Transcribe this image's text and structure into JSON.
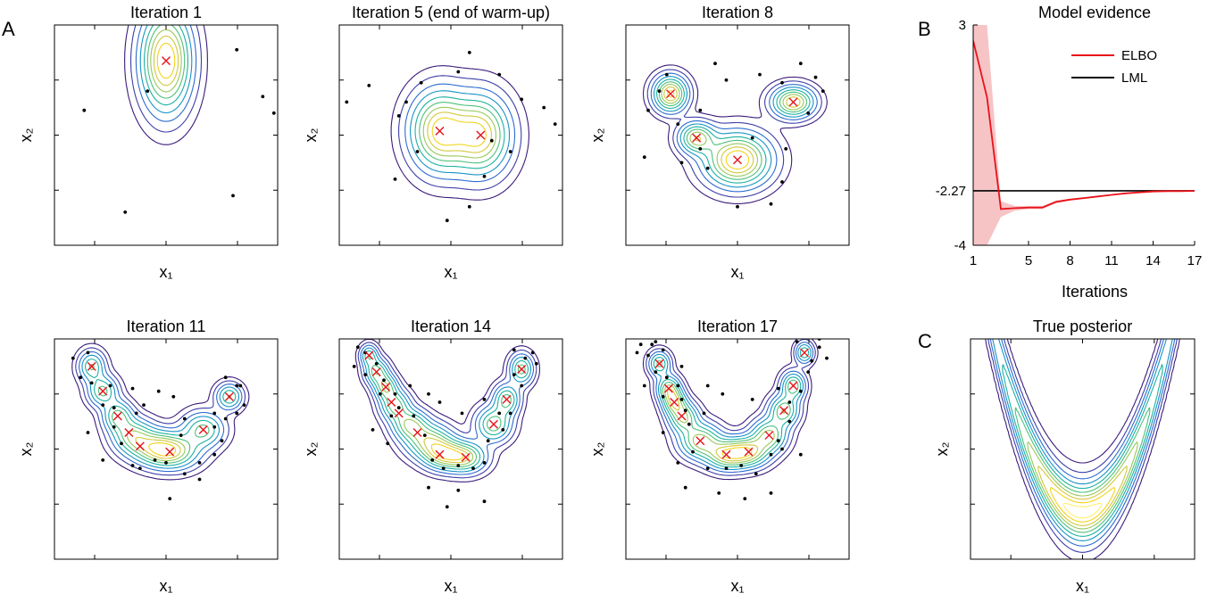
{
  "panel_labels": [
    "A",
    "B",
    "C"
  ],
  "chart_data": [
    {
      "type": "scatter",
      "title": "Iteration 1",
      "xlabel": "x₁",
      "ylabel": "x₂",
      "centers": [
        [
          0.0,
          2.7
        ]
      ],
      "comps": [
        {
          "x": 0.0,
          "y": 2.7,
          "sx": 0.42,
          "sy": 1.15,
          "r": 0,
          "w": 1
        }
      ],
      "points": [
        [
          -3.1,
          1.1
        ],
        [
          -2.2,
          0.9
        ],
        [
          -1.1,
          -2.8
        ],
        [
          1.0,
          -4.3
        ],
        [
          1.8,
          -2.2
        ],
        [
          1.9,
          3.1
        ],
        [
          2.6,
          1.4
        ],
        [
          2.9,
          0.8
        ],
        [
          -0.5,
          1.6
        ]
      ]
    },
    {
      "type": "scatter",
      "title": "Iteration 5 (end of warm-up)",
      "xlabel": "x₁",
      "ylabel": "x₂",
      "centers": [
        [
          -0.3,
          0.15
        ],
        [
          0.8,
          0.0
        ]
      ],
      "comps": [
        {
          "x": -0.3,
          "y": 0.15,
          "sx": 0.5,
          "sy": 0.9,
          "r": 0,
          "w": 1
        },
        {
          "x": 0.8,
          "y": 0.0,
          "sx": 0.5,
          "sy": 0.9,
          "r": 0,
          "w": 0.95
        }
      ],
      "points": [
        [
          -2.2,
          1.8
        ],
        [
          -1.2,
          1.2
        ],
        [
          -0.8,
          1.9
        ],
        [
          -1.4,
          0.7
        ],
        [
          0.2,
          2.3
        ],
        [
          0.5,
          3.0
        ],
        [
          1.3,
          2.2
        ],
        [
          1.9,
          1.3
        ],
        [
          2.5,
          1.0
        ],
        [
          2.8,
          0.4
        ],
        [
          1.6,
          -0.6
        ],
        [
          0.9,
          -1.5
        ],
        [
          0.5,
          -2.6
        ],
        [
          -0.1,
          -3.1
        ],
        [
          -1.5,
          -1.6
        ],
        [
          -0.9,
          -0.6
        ],
        [
          -2.8,
          1.2
        ],
        [
          -3.2,
          1.3
        ],
        [
          1.1,
          -0.2
        ]
      ]
    },
    {
      "type": "scatter",
      "title": "Iteration 8",
      "xlabel": "x₁",
      "ylabel": "x₂",
      "centers": [
        [
          -1.8,
          1.5
        ],
        [
          -1.1,
          -0.1
        ],
        [
          0.0,
          -0.9
        ],
        [
          1.5,
          1.2
        ]
      ],
      "comps": [
        {
          "x": -1.8,
          "y": 1.5,
          "sx": 0.28,
          "sy": 0.4,
          "r": 0,
          "w": 0.9
        },
        {
          "x": -1.1,
          "y": -0.1,
          "sx": 0.3,
          "sy": 0.35,
          "r": 0,
          "w": 0.7
        },
        {
          "x": 0.0,
          "y": -0.9,
          "sx": 0.55,
          "sy": 0.6,
          "r": 0,
          "w": 1
        },
        {
          "x": 1.5,
          "y": 1.2,
          "sx": 0.35,
          "sy": 0.35,
          "r": 0.2,
          "w": 0.85
        }
      ],
      "points": [
        [
          -1.9,
          2.2
        ],
        [
          -2.1,
          1.6
        ],
        [
          -2.4,
          0.9
        ],
        [
          -1.6,
          0.4
        ],
        [
          -1.0,
          0.9
        ],
        [
          -0.6,
          2.6
        ],
        [
          0.6,
          2.2
        ],
        [
          1.2,
          1.9
        ],
        [
          1.7,
          2.6
        ],
        [
          2.1,
          2.1
        ],
        [
          2.3,
          1.6
        ],
        [
          1.9,
          0.8
        ],
        [
          1.3,
          -0.5
        ],
        [
          1.2,
          -1.7
        ],
        [
          0.9,
          -2.5
        ],
        [
          0.0,
          -2.6
        ],
        [
          -0.8,
          -1.2
        ],
        [
          -1.5,
          -1.0
        ],
        [
          -2.5,
          -0.8
        ],
        [
          -1.0,
          -0.5
        ],
        [
          -0.3,
          2.0
        ],
        [
          0.4,
          -0.1
        ]
      ]
    },
    {
      "type": "scatter",
      "title": "Iteration 11",
      "xlabel": "x₁",
      "ylabel": "x₂",
      "centers": [
        [
          -2.0,
          3.0
        ],
        [
          -1.7,
          2.1
        ],
        [
          -1.3,
          1.2
        ],
        [
          -1.0,
          0.6
        ],
        [
          -0.7,
          0.1
        ],
        [
          0.1,
          -0.1
        ],
        [
          1.0,
          0.7
        ],
        [
          1.7,
          1.9
        ]
      ],
      "comps": [
        {
          "x": -2.0,
          "y": 3.0,
          "sx": 0.22,
          "sy": 0.35,
          "r": 0,
          "w": 0.85
        },
        {
          "x": -1.7,
          "y": 2.1,
          "sx": 0.25,
          "sy": 0.35,
          "r": 0,
          "w": 0.9
        },
        {
          "x": -1.3,
          "y": 1.2,
          "sx": 0.25,
          "sy": 0.35,
          "r": 0,
          "w": 0.9
        },
        {
          "x": -0.9,
          "y": 0.5,
          "sx": 0.35,
          "sy": 0.4,
          "r": 0,
          "w": 0.9
        },
        {
          "x": -0.3,
          "y": 0.05,
          "sx": 0.45,
          "sy": 0.4,
          "r": 0,
          "w": 0.95
        },
        {
          "x": 0.2,
          "y": -0.1,
          "sx": 0.45,
          "sy": 0.4,
          "r": 0,
          "w": 1
        },
        {
          "x": 1.0,
          "y": 0.7,
          "sx": 0.35,
          "sy": 0.4,
          "r": 0,
          "w": 0.9
        },
        {
          "x": 1.7,
          "y": 1.9,
          "sx": 0.22,
          "sy": 0.3,
          "r": 0,
          "w": 0.85
        }
      ],
      "points": [
        [
          -2.5,
          3.3
        ],
        [
          -2.1,
          3.5
        ],
        [
          -2.3,
          2.6
        ],
        [
          -2.0,
          2.4
        ],
        [
          -1.5,
          2.3
        ],
        [
          -1.7,
          1.6
        ],
        [
          -1.4,
          1.5
        ],
        [
          -0.9,
          2.2
        ],
        [
          -0.8,
          1.3
        ],
        [
          -1.4,
          0.8
        ],
        [
          -1.2,
          0.2
        ],
        [
          -0.9,
          -0.6
        ],
        [
          -0.7,
          -0.7
        ],
        [
          -0.3,
          -0.4
        ],
        [
          0.0,
          -0.5
        ],
        [
          0.5,
          -0.9
        ],
        [
          0.9,
          -1.1
        ],
        [
          1.3,
          -0.2
        ],
        [
          1.5,
          0.3
        ],
        [
          1.3,
          0.8
        ],
        [
          1.6,
          1.1
        ],
        [
          1.9,
          1.3
        ],
        [
          2.1,
          1.6
        ],
        [
          2.0,
          2.3
        ],
        [
          1.9,
          2.3
        ],
        [
          1.6,
          2.6
        ],
        [
          1.3,
          1.3
        ],
        [
          0.5,
          1.1
        ],
        [
          0.2,
          1.9
        ],
        [
          -0.2,
          2.1
        ],
        [
          -0.6,
          1.6
        ],
        [
          0.9,
          -0.5
        ],
        [
          0.4,
          0.5
        ],
        [
          -2.1,
          0.6
        ],
        [
          -1.7,
          -0.4
        ],
        [
          0.1,
          -1.8
        ]
      ]
    },
    {
      "type": "scatter",
      "title": "Iteration 14",
      "xlabel": "x₁",
      "ylabel": "x₂",
      "centers": [
        [
          -2.2,
          3.4
        ],
        [
          -2.0,
          2.8
        ],
        [
          -1.75,
          2.25
        ],
        [
          -1.6,
          1.7
        ],
        [
          -1.4,
          1.3
        ],
        [
          -0.9,
          0.6
        ],
        [
          -0.3,
          -0.2
        ],
        [
          0.4,
          -0.3
        ],
        [
          1.15,
          0.9
        ],
        [
          1.5,
          1.8
        ],
        [
          1.9,
          2.9
        ]
      ],
      "comps": [
        {
          "x": -2.2,
          "y": 3.4,
          "sx": 0.15,
          "sy": 0.25,
          "r": 0,
          "w": 0.7
        },
        {
          "x": -2.0,
          "y": 2.8,
          "sx": 0.2,
          "sy": 0.3,
          "r": 0,
          "w": 0.85
        },
        {
          "x": -1.75,
          "y": 2.25,
          "sx": 0.2,
          "sy": 0.3,
          "r": 0,
          "w": 0.85
        },
        {
          "x": -1.5,
          "y": 1.6,
          "sx": 0.25,
          "sy": 0.35,
          "r": 0,
          "w": 0.85
        },
        {
          "x": -1.1,
          "y": 0.9,
          "sx": 0.3,
          "sy": 0.35,
          "r": 0,
          "w": 0.9
        },
        {
          "x": -0.6,
          "y": 0.3,
          "sx": 0.4,
          "sy": 0.4,
          "r": 0,
          "w": 0.95
        },
        {
          "x": -0.2,
          "y": -0.2,
          "sx": 0.35,
          "sy": 0.35,
          "r": 0,
          "w": 1
        },
        {
          "x": 0.4,
          "y": -0.3,
          "sx": 0.35,
          "sy": 0.35,
          "r": 0,
          "w": 1
        },
        {
          "x": 1.15,
          "y": 0.9,
          "sx": 0.3,
          "sy": 0.4,
          "r": 0,
          "w": 0.9
        },
        {
          "x": 1.5,
          "y": 1.8,
          "sx": 0.22,
          "sy": 0.35,
          "r": 0,
          "w": 0.85
        },
        {
          "x": 1.9,
          "y": 2.9,
          "sx": 0.2,
          "sy": 0.35,
          "r": 0,
          "w": 0.85
        }
      ],
      "points": [
        [
          -2.5,
          3.7
        ],
        [
          -2.3,
          3.5
        ],
        [
          -2.6,
          3.0
        ],
        [
          -2.3,
          2.7
        ],
        [
          -2.0,
          3.1
        ],
        [
          -1.8,
          2.5
        ],
        [
          -1.9,
          2.0
        ],
        [
          -1.5,
          2.0
        ],
        [
          -1.4,
          1.5
        ],
        [
          -1.6,
          1.2
        ],
        [
          -1.0,
          1.2
        ],
        [
          -0.7,
          0.5
        ],
        [
          -0.5,
          -0.4
        ],
        [
          -0.2,
          -0.7
        ],
        [
          0.2,
          -0.6
        ],
        [
          0.6,
          -0.7
        ],
        [
          0.9,
          -0.5
        ],
        [
          1.0,
          0.3
        ],
        [
          1.4,
          0.7
        ],
        [
          1.3,
          1.3
        ],
        [
          1.6,
          1.3
        ],
        [
          1.9,
          2.3
        ],
        [
          2.0,
          3.3
        ],
        [
          2.3,
          3.1
        ],
        [
          2.2,
          3.5
        ],
        [
          1.7,
          3.6
        ],
        [
          1.7,
          2.7
        ],
        [
          0.9,
          1.8
        ],
        [
          0.3,
          1.3
        ],
        [
          -0.6,
          2.0
        ],
        [
          -1.1,
          2.3
        ],
        [
          -0.3,
          1.7
        ],
        [
          -1.7,
          0.2
        ],
        [
          -0.6,
          -1.4
        ],
        [
          0.2,
          -1.5
        ],
        [
          0.9,
          -1.9
        ],
        [
          -0.1,
          -2.1
        ],
        [
          -2.1,
          0.7
        ]
      ]
    },
    {
      "type": "scatter",
      "title": "Iteration 17",
      "xlabel": "x₁",
      "ylabel": "x₂",
      "centers": [
        [
          -2.1,
          3.1
        ],
        [
          -1.85,
          2.2
        ],
        [
          -1.7,
          1.7
        ],
        [
          -1.5,
          1.2
        ],
        [
          -1.0,
          0.3
        ],
        [
          -0.3,
          -0.2
        ],
        [
          0.3,
          -0.1
        ],
        [
          0.85,
          0.5
        ],
        [
          1.25,
          1.4
        ],
        [
          1.5,
          2.3
        ],
        [
          1.8,
          3.5
        ]
      ],
      "comps": [
        {
          "x": -2.1,
          "y": 3.1,
          "sx": 0.18,
          "sy": 0.28,
          "r": 0,
          "w": 0.75
        },
        {
          "x": -1.85,
          "y": 2.2,
          "sx": 0.2,
          "sy": 0.3,
          "r": 0,
          "w": 0.85
        },
        {
          "x": -1.7,
          "y": 1.7,
          "sx": 0.2,
          "sy": 0.3,
          "r": 0,
          "w": 0.85
        },
        {
          "x": -1.45,
          "y": 1.15,
          "sx": 0.25,
          "sy": 0.35,
          "r": 0,
          "w": 0.85
        },
        {
          "x": -1.0,
          "y": 0.3,
          "sx": 0.35,
          "sy": 0.4,
          "r": 0,
          "w": 0.95
        },
        {
          "x": -0.3,
          "y": -0.2,
          "sx": 0.35,
          "sy": 0.35,
          "r": 0,
          "w": 1
        },
        {
          "x": 0.3,
          "y": -0.1,
          "sx": 0.35,
          "sy": 0.35,
          "r": 0,
          "w": 1
        },
        {
          "x": 0.85,
          "y": 0.5,
          "sx": 0.3,
          "sy": 0.38,
          "r": 0,
          "w": 0.9
        },
        {
          "x": 1.25,
          "y": 1.4,
          "sx": 0.25,
          "sy": 0.35,
          "r": 0,
          "w": 0.85
        },
        {
          "x": 1.5,
          "y": 2.3,
          "sx": 0.2,
          "sy": 0.32,
          "r": 0,
          "w": 0.85
        },
        {
          "x": 1.8,
          "y": 3.5,
          "sx": 0.15,
          "sy": 0.25,
          "r": 0,
          "w": 0.7
        }
      ],
      "points": [
        [
          -2.6,
          3.8
        ],
        [
          -2.3,
          3.8
        ],
        [
          -2.2,
          3.9
        ],
        [
          -2.7,
          3.5
        ],
        [
          -2.4,
          3.4
        ],
        [
          -2.0,
          3.6
        ],
        [
          -2.2,
          2.8
        ],
        [
          -1.9,
          2.6
        ],
        [
          -1.6,
          2.3
        ],
        [
          -2.0,
          1.9
        ],
        [
          -1.5,
          1.8
        ],
        [
          -1.4,
          1.4
        ],
        [
          -1.3,
          0.9
        ],
        [
          -2.0,
          0.6
        ],
        [
          -1.2,
          -0.1
        ],
        [
          -0.8,
          -0.7
        ],
        [
          -0.3,
          -0.7
        ],
        [
          0.1,
          -0.6
        ],
        [
          0.5,
          -0.9
        ],
        [
          0.9,
          -0.2
        ],
        [
          1.1,
          0.3
        ],
        [
          1.4,
          1.0
        ],
        [
          1.4,
          1.7
        ],
        [
          1.7,
          2.1
        ],
        [
          1.9,
          2.8
        ],
        [
          2.0,
          3.2
        ],
        [
          2.2,
          3.7
        ],
        [
          2.2,
          4.0
        ],
        [
          1.6,
          3.9
        ],
        [
          2.4,
          3.3
        ],
        [
          1.1,
          2.2
        ],
        [
          0.4,
          1.8
        ],
        [
          -0.4,
          2.0
        ],
        [
          -0.8,
          2.3
        ],
        [
          -1.5,
          3.0
        ],
        [
          -2.5,
          2.3
        ],
        [
          -0.9,
          1.3
        ],
        [
          -1.6,
          -0.5
        ],
        [
          -1.4,
          -1.4
        ],
        [
          -0.5,
          -1.6
        ],
        [
          0.2,
          -1.8
        ],
        [
          0.9,
          -1.6
        ],
        [
          1.2,
          0.0
        ],
        [
          1.7,
          -0.2
        ]
      ]
    },
    {
      "type": "line",
      "title": "Model evidence",
      "xlabel": "Iterations",
      "ylabel": "",
      "xlim": [
        1,
        17
      ],
      "ylim": [
        -4,
        3
      ],
      "xticks": [
        1,
        5,
        8,
        11,
        14,
        17
      ],
      "yticks": [
        -4,
        -2.27,
        3
      ],
      "ytick_labels": [
        "-4",
        "-2.27",
        "3"
      ],
      "legend": [
        {
          "name": "ELBO",
          "color": "#e8121a"
        },
        {
          "name": "LML",
          "color": "#000000"
        }
      ],
      "lml": -2.27,
      "series": [
        {
          "name": "ELBO",
          "x": [
            1,
            2,
            3,
            4,
            5,
            6,
            7,
            8,
            9,
            10,
            11,
            12,
            13,
            14,
            15,
            16,
            17
          ],
          "y": [
            2.5,
            0.7,
            -2.85,
            -2.82,
            -2.8,
            -2.8,
            -2.62,
            -2.55,
            -2.5,
            -2.45,
            -2.4,
            -2.35,
            -2.32,
            -2.29,
            -2.28,
            -2.28,
            -2.27
          ],
          "upper": [
            3.0,
            3.0,
            -2.6,
            -2.75,
            -2.75,
            -2.75,
            -2.58,
            -2.52,
            -2.47,
            -2.43,
            -2.38,
            -2.33,
            -2.31,
            -2.28,
            -2.27,
            -2.27,
            -2.26
          ],
          "lower": [
            -4.0,
            -4.0,
            -3.1,
            -2.9,
            -2.85,
            -2.85,
            -2.66,
            -2.58,
            -2.53,
            -2.47,
            -2.42,
            -2.37,
            -2.33,
            -2.3,
            -2.29,
            -2.29,
            -2.28
          ]
        }
      ]
    },
    {
      "type": "contour",
      "title": "True posterior",
      "xlabel": "x₁",
      "ylabel": "x₂"
    }
  ]
}
